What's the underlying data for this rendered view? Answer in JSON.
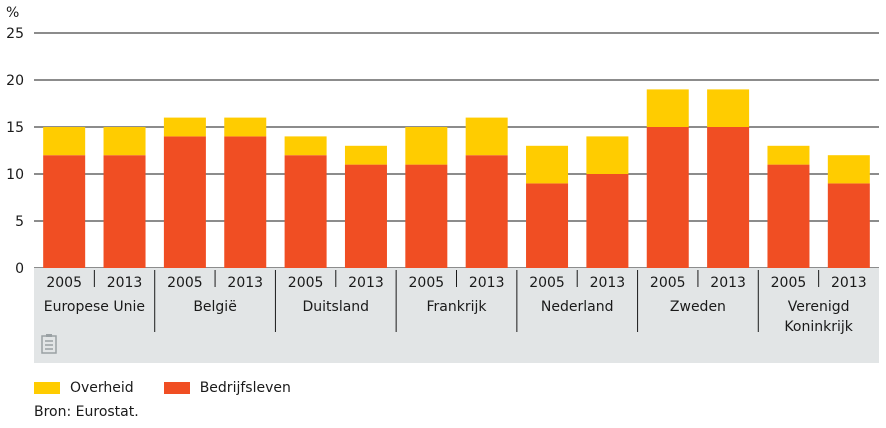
{
  "chart_data": {
    "type": "bar",
    "stacked": true,
    "unit_label": "%",
    "ylim": [
      0,
      25
    ],
    "yticks": [
      0,
      5,
      10,
      15,
      20,
      25
    ],
    "grid": true,
    "legend_position": "bottom-left",
    "categories": [
      "2005",
      "2013",
      "2005",
      "2013",
      "2005",
      "2013",
      "2005",
      "2013",
      "2005",
      "2013",
      "2005",
      "2013",
      "2005",
      "2013"
    ],
    "groups": [
      {
        "lines": [
          "Europese Unie"
        ],
        "categories": [
          "2005",
          "2013"
        ]
      },
      {
        "lines": [
          "België"
        ],
        "categories": [
          "2005",
          "2013"
        ]
      },
      {
        "lines": [
          "Duitsland"
        ],
        "categories": [
          "2005",
          "2013"
        ]
      },
      {
        "lines": [
          "Frankrijk"
        ],
        "categories": [
          "2005",
          "2013"
        ]
      },
      {
        "lines": [
          "Nederland"
        ],
        "categories": [
          "2005",
          "2013"
        ]
      },
      {
        "lines": [
          "Zweden"
        ],
        "categories": [
          "2005",
          "2013"
        ]
      },
      {
        "lines": [
          "Verenigd",
          "Koninkrijk"
        ],
        "categories": [
          "2005",
          "2013"
        ]
      }
    ],
    "series": [
      {
        "name": "Bedrijfsleven",
        "color": "#f04e23",
        "values": [
          12,
          12,
          14,
          14,
          12,
          11,
          11,
          12,
          9,
          10,
          15,
          15,
          11,
          9
        ]
      },
      {
        "name": "Overheid",
        "color": "#ffcc00",
        "values": [
          3,
          3,
          2,
          2,
          2,
          2,
          4,
          4,
          4,
          4,
          4,
          4,
          2,
          3
        ]
      }
    ]
  },
  "legend": [
    {
      "label": "Overheid",
      "color": "#ffcc00"
    },
    {
      "label": "Bedrijfsleven",
      "color": "#f04e23"
    }
  ],
  "source": "Bron: Eurostat.",
  "icon": "document-icon"
}
